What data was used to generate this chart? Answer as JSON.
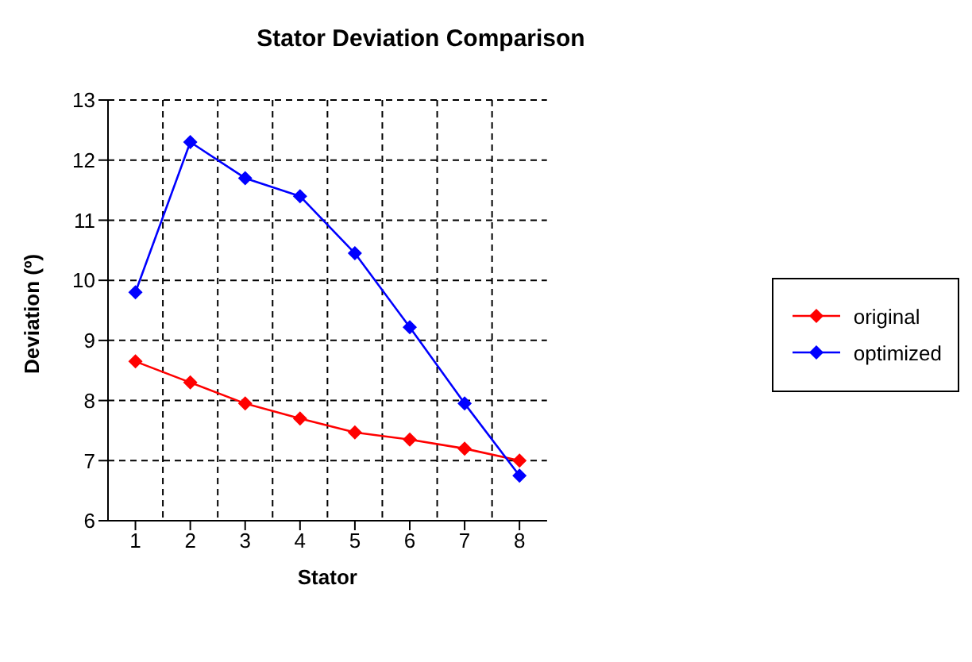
{
  "chart_data": {
    "type": "line",
    "title": "Stator Deviation Comparison",
    "xlabel": "Stator",
    "ylabel": "Deviation (º)",
    "categories": [
      "1",
      "2",
      "3",
      "4",
      "5",
      "6",
      "7",
      "8"
    ],
    "series": [
      {
        "name": "original",
        "color": "#ff0000",
        "values": [
          8.65,
          8.3,
          7.95,
          7.7,
          7.47,
          7.35,
          7.2,
          7.0
        ]
      },
      {
        "name": "optimized",
        "color": "#0000ff",
        "values": [
          9.8,
          12.3,
          11.7,
          11.4,
          10.45,
          9.22,
          7.95,
          6.75
        ]
      }
    ],
    "ylim": [
      6,
      13
    ],
    "yticks": [
      6,
      7,
      8,
      9,
      10,
      11,
      12,
      13
    ],
    "grid": true,
    "legend": "right",
    "marker": "diamond",
    "line_style": "solid"
  }
}
